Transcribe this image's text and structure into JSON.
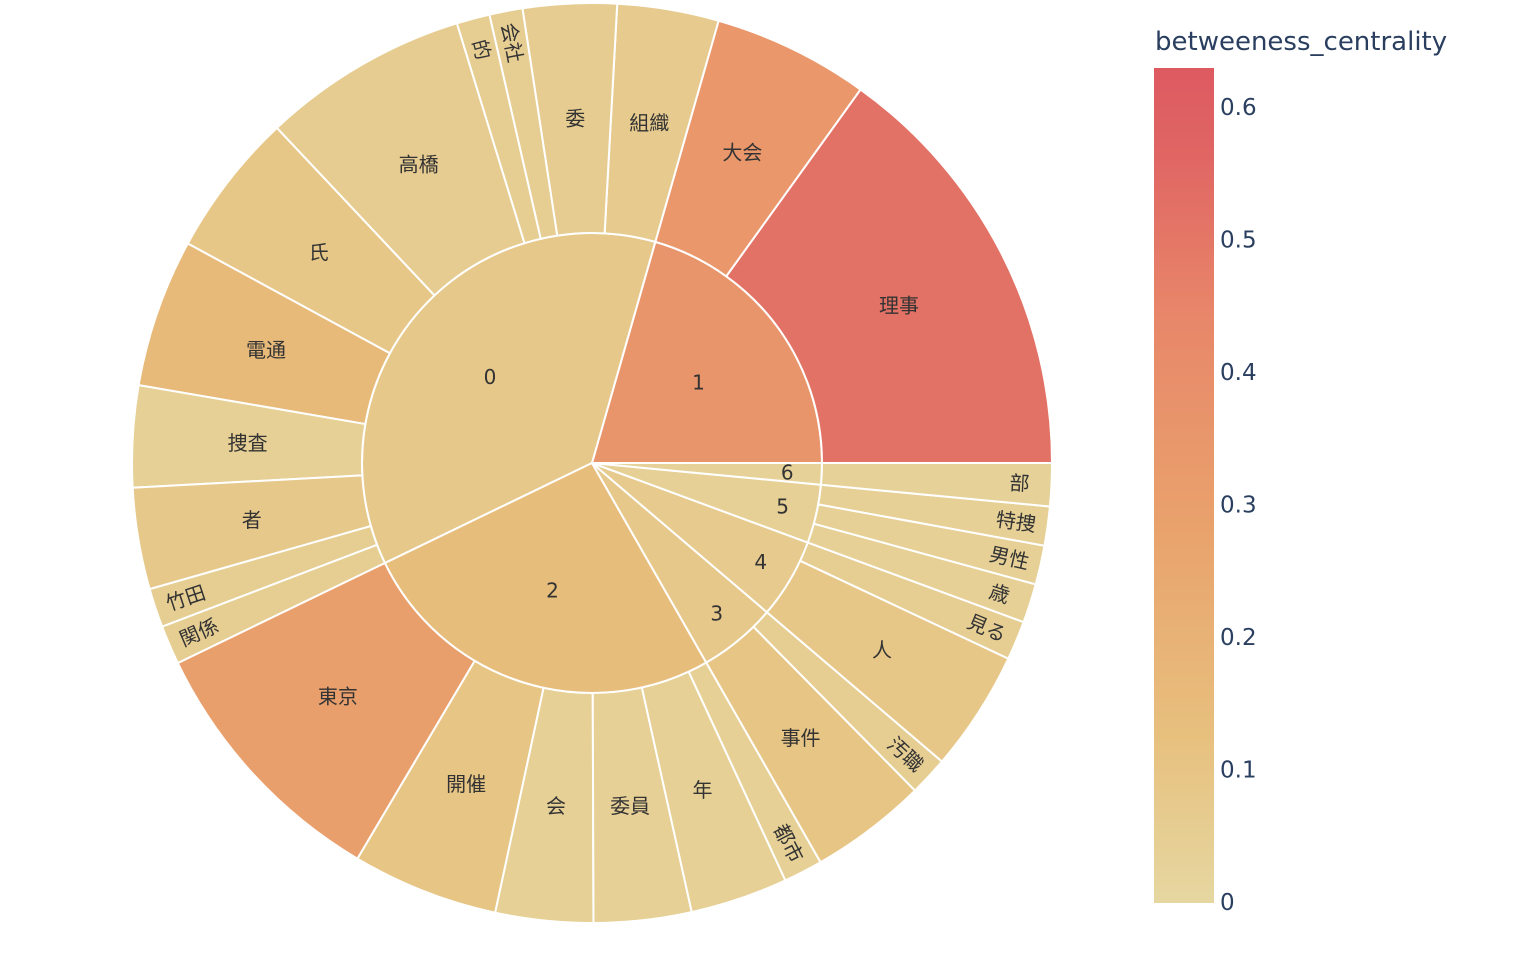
{
  "chart_data": {
    "type": "sunburst",
    "colorbar": {
      "title": "betweeness_centrality",
      "range": [
        0,
        0.63
      ],
      "ticks": [
        0,
        0.1,
        0.2,
        0.3,
        0.4,
        0.5,
        0.6
      ],
      "tick_labels": [
        "0",
        "0.1",
        "0.2",
        "0.3",
        "0.4",
        "0.5",
        "0.6"
      ],
      "colorscale": [
        "#e6d7a1",
        "#e7c07e",
        "#e9a26c",
        "#e8876a",
        "#e06563",
        "#dd5a61"
      ]
    },
    "groups": [
      {
        "name": "1",
        "centrality": 0.36,
        "children": [
          {
            "name": "理事",
            "value": 11,
            "centrality": 0.52
          },
          {
            "name": "大会",
            "value": 4,
            "centrality": 0.35
          }
        ]
      },
      {
        "name": "0",
        "centrality": 0.08,
        "children": [
          {
            "name": "組織",
            "value": 2.6,
            "centrality": 0.07
          },
          {
            "name": "委",
            "value": 2.4,
            "centrality": 0.06
          },
          {
            "name": "会社",
            "value": 0.85,
            "centrality": 0.05
          },
          {
            "name": "的",
            "value": 0.85,
            "centrality": 0.05
          },
          {
            "name": "高橋",
            "value": 5.3,
            "centrality": 0.06
          },
          {
            "name": "氏",
            "value": 3.7,
            "centrality": 0.09
          },
          {
            "name": "電通",
            "value": 3.8,
            "centrality": 0.16
          },
          {
            "name": "捜査",
            "value": 2.6,
            "centrality": 0.04
          },
          {
            "name": "者",
            "value": 2.6,
            "centrality": 0.08
          },
          {
            "name": "竹田",
            "value": 1.0,
            "centrality": 0.05
          },
          {
            "name": "関係",
            "value": 1.0,
            "centrality": 0.05
          }
        ]
      },
      {
        "name": "2",
        "centrality": 0.14,
        "children": [
          {
            "name": "東京",
            "value": 6.8,
            "centrality": 0.3
          },
          {
            "name": "開催",
            "value": 3.75,
            "centrality": 0.1
          },
          {
            "name": "会",
            "value": 2.5,
            "centrality": 0.04
          },
          {
            "name": "委員",
            "value": 2.5,
            "centrality": 0.04
          },
          {
            "name": "年",
            "value": 2.5,
            "centrality": 0.04
          },
          {
            "name": "都市",
            "value": 1.0,
            "centrality": 0.04
          }
        ]
      },
      {
        "name": "3",
        "centrality": 0.08,
        "children": [
          {
            "name": "事件",
            "value": 3.0,
            "centrality": 0.1
          },
          {
            "name": "汚職",
            "value": 1.0,
            "centrality": 0.05
          }
        ]
      },
      {
        "name": "4",
        "centrality": 0.07,
        "children": [
          {
            "name": "人",
            "value": 3.1,
            "centrality": 0.09
          },
          {
            "name": "見る",
            "value": 1.0,
            "centrality": 0.05
          }
        ]
      },
      {
        "name": "5",
        "centrality": 0.04,
        "children": [
          {
            "name": "歳",
            "value": 1.0,
            "centrality": 0.04
          },
          {
            "name": "男性",
            "value": 1.0,
            "centrality": 0.04
          },
          {
            "name": "特捜",
            "value": 1.0,
            "centrality": 0.04
          }
        ]
      },
      {
        "name": "6",
        "centrality": 0.03,
        "children": [
          {
            "name": "部",
            "value": 1.1,
            "centrality": 0.03
          }
        ]
      }
    ]
  }
}
